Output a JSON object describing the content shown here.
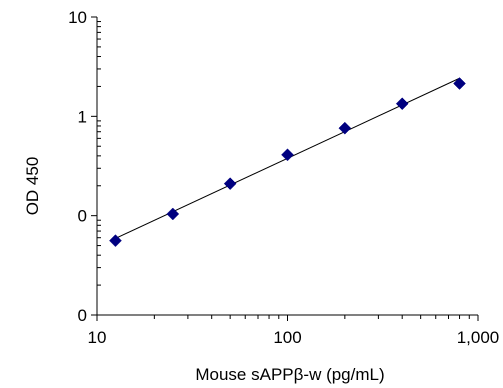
{
  "chart_data": {
    "type": "scatter",
    "xlabel": "Mouse sAPPβ-w (pg/mL)",
    "ylabel": "OD 450",
    "x_scale": "log",
    "y_scale": "log",
    "xlim": [
      10,
      1000
    ],
    "ylim": [
      0.01,
      10
    ],
    "x_ticks": [
      10,
      100,
      1000
    ],
    "x_tick_labels": [
      "10",
      "100",
      "1,000"
    ],
    "y_ticks": [
      0.01,
      0.1,
      1,
      10
    ],
    "y_tick_labels": [
      "0",
      "0",
      "1",
      "10"
    ],
    "grid": false,
    "marker": "diamond",
    "colors": {
      "marker": "#000080",
      "line": "#000000",
      "axis": "#000000"
    },
    "points": [
      {
        "x": 12.5,
        "y": 0.056
      },
      {
        "x": 25,
        "y": 0.104
      },
      {
        "x": 50,
        "y": 0.21
      },
      {
        "x": 100,
        "y": 0.41
      },
      {
        "x": 200,
        "y": 0.76
      },
      {
        "x": 400,
        "y": 1.34
      },
      {
        "x": 800,
        "y": 2.14
      }
    ],
    "trendline": {
      "type": "power",
      "x_range": [
        12.5,
        800
      ]
    }
  }
}
